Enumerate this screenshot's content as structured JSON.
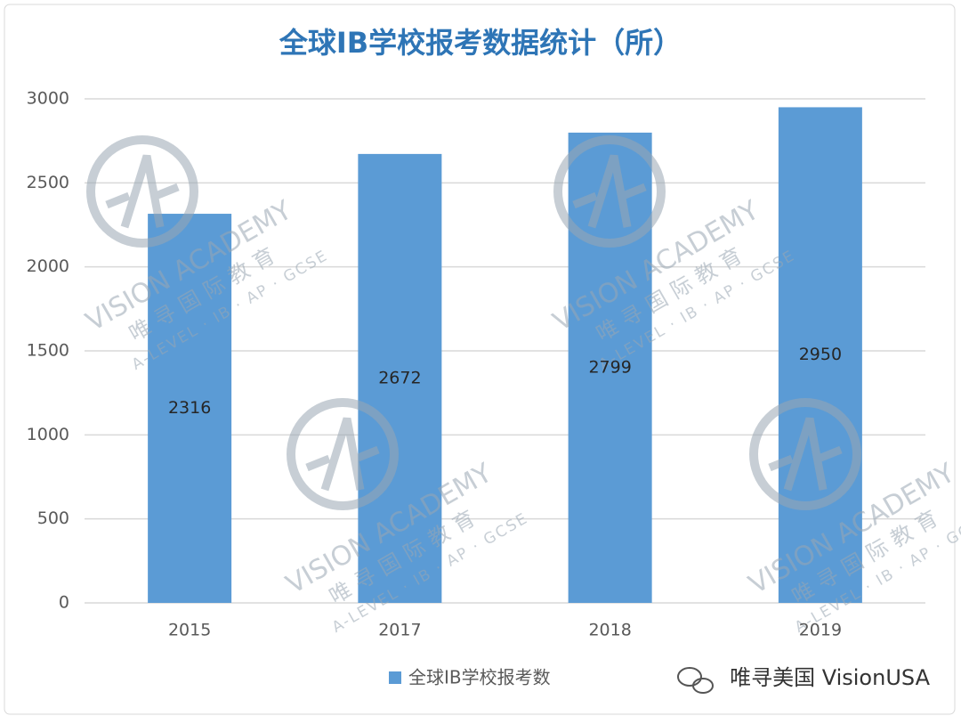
{
  "chart_data": {
    "type": "bar",
    "title": "全球IB学校报考数据统计（所）",
    "categories": [
      "2015",
      "2017",
      "2018",
      "2019"
    ],
    "series": [
      {
        "name": "全球IB学校报考数",
        "color": "#5b9bd5",
        "values": [
          2316,
          2672,
          2799,
          2950
        ]
      }
    ],
    "ylim": [
      0,
      3000
    ],
    "yticks": [
      0,
      500,
      1000,
      1500,
      2000,
      2500,
      3000
    ],
    "grid": true,
    "legend": "bottom",
    "watermark": {
      "name": "VISION ACADEMY",
      "cn": "唯寻国际教育",
      "tagline": "A-LEVEL · IB · AP · GCSE"
    },
    "credit": "唯寻美国 VisionUSA"
  }
}
